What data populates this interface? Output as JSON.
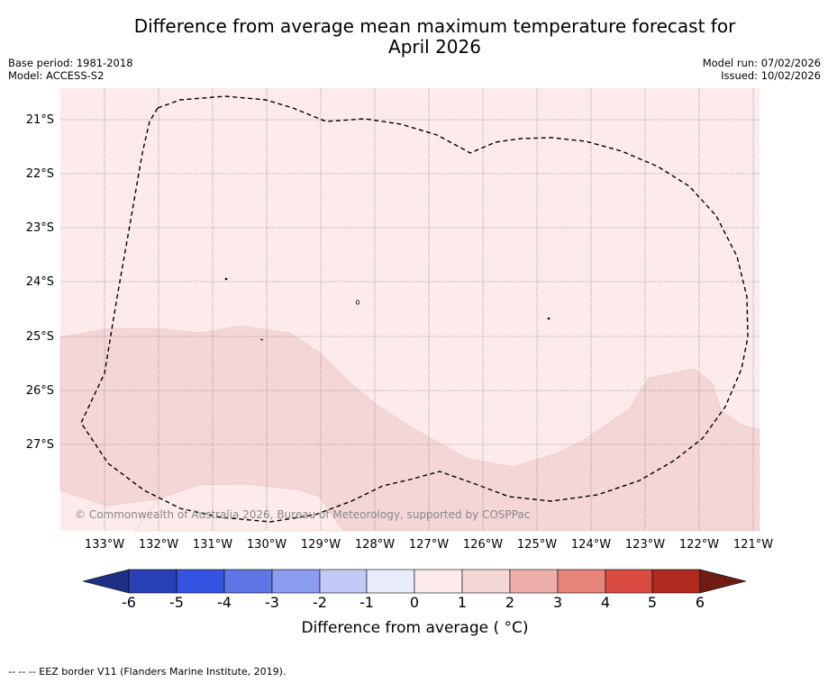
{
  "title": {
    "line1": "Difference from average mean maximum temperature forecast for",
    "line2": "April 2026"
  },
  "meta": {
    "base_period": "Base period: 1981-2018",
    "model": "Model: ACCESS-S2",
    "model_run": "Model run: 07/02/2026",
    "issued": "Issued: 10/02/2026"
  },
  "map": {
    "latitude_labels": [
      "21°S",
      "22°S",
      "23°S",
      "24°S",
      "25°S",
      "26°S",
      "27°S"
    ],
    "longitude_labels": [
      "133°W",
      "132°W",
      "131°W",
      "130°W",
      "129°W",
      "128°W",
      "127°W",
      "126°W",
      "125°W",
      "124°W",
      "123°W",
      "122°W",
      "121°W"
    ],
    "copyright": "© Commonwealth of Australia 2026, Bureau of Meteorology, supported by COSPPac",
    "colors": {
      "anomaly_0_to_1": "#fcebea",
      "anomaly_1_to_2": "#f5d6d6",
      "gridline": "#555555"
    }
  },
  "colorbar": {
    "ticks": [
      "-6",
      "-5",
      "-4",
      "-3",
      "-2",
      "-1",
      "0",
      "1",
      "2",
      "3",
      "4",
      "5",
      "6"
    ],
    "colors": [
      "#1f2f85",
      "#2840b5",
      "#3353e0",
      "#5f76e6",
      "#8b9bef",
      "#c2caf7",
      "#e8ecfb",
      "#fcebea",
      "#f5d6d6",
      "#eeafa9",
      "#e8837a",
      "#da4b42",
      "#b0291f",
      "#6e1c14"
    ],
    "label": "Difference from average ( °C)"
  },
  "footnote": "--  --  -- EEZ border V11 (Flanders Marine Institute, 2019)."
}
